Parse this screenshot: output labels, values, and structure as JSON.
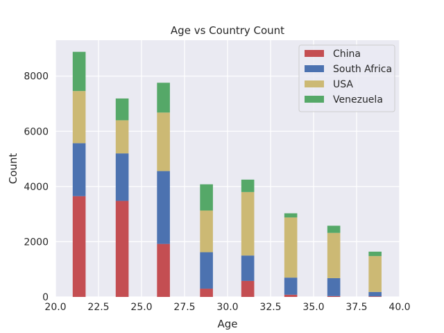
{
  "chart_data": {
    "type": "bar",
    "stacked": true,
    "title": "Age vs Country Count",
    "xlabel": "Age",
    "ylabel": "Count",
    "xlim": [
      20.0,
      40.0
    ],
    "ylim": [
      0,
      9300
    ],
    "grid": true,
    "legend_position": "top-right",
    "x_ticks": [
      20.0,
      22.5,
      25.0,
      27.5,
      30.0,
      32.5,
      35.0,
      37.5,
      40.0
    ],
    "x_tick_labels": [
      "20.0",
      "22.5",
      "25.0",
      "27.5",
      "30.0",
      "32.5",
      "35.0",
      "37.5",
      "40.0"
    ],
    "y_ticks": [
      0,
      2000,
      4000,
      6000,
      8000
    ],
    "y_tick_labels": [
      "0",
      "2000",
      "4000",
      "6000",
      "8000"
    ],
    "bin_starts": [
      21.0,
      23.5,
      25.9,
      28.4,
      30.8,
      33.3,
      35.8,
      38.2
    ],
    "bin_width": 0.75,
    "series": [
      {
        "name": "China",
        "color": "#c44e52",
        "values": [
          3650,
          3480,
          1920,
          300,
          580,
          80,
          30,
          20
        ]
      },
      {
        "name": "South Africa",
        "color": "#4c72b0",
        "values": [
          1920,
          1720,
          2640,
          1320,
          920,
          620,
          650,
          160
        ]
      },
      {
        "name": "USA",
        "color": "#ccb974",
        "values": [
          1890,
          1200,
          2120,
          1510,
          2300,
          2180,
          1640,
          1300
        ]
      },
      {
        "name": "Venezuela",
        "color": "#55a868",
        "values": [
          1420,
          790,
          1080,
          950,
          450,
          150,
          260,
          160
        ]
      }
    ]
  }
}
